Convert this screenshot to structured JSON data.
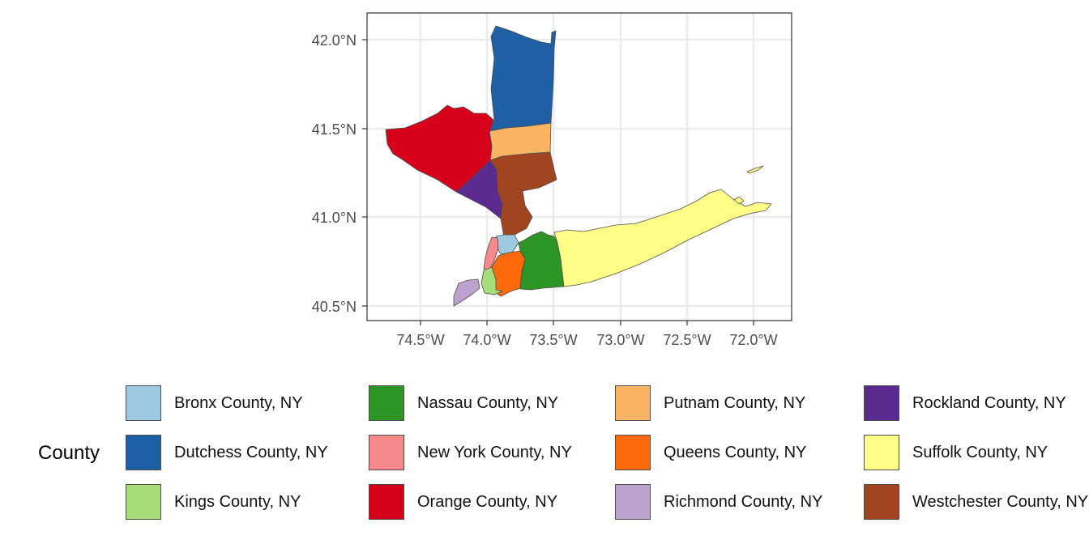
{
  "axes": {
    "y_ticks": [
      "42.0°N",
      "41.5°N",
      "41.0°N",
      "40.5°N"
    ],
    "x_ticks": [
      "74.5°W",
      "74.0°W",
      "73.5°W",
      "73.0°W",
      "72.5°W",
      "72.0°W"
    ]
  },
  "legend": {
    "title": "County",
    "items": [
      {
        "label": "Bronx County, NY",
        "color": "#9ecae1"
      },
      {
        "label": "Dutchess County, NY",
        "color": "#1f5fa6"
      },
      {
        "label": "Kings County, NY",
        "color": "#a6dc7a"
      },
      {
        "label": "Nassau County, NY",
        "color": "#2d9525"
      },
      {
        "label": "New York County, NY",
        "color": "#f7898a"
      },
      {
        "label": "Orange County, NY",
        "color": "#d7001a"
      },
      {
        "label": "Putnam County, NY",
        "color": "#fbb462"
      },
      {
        "label": "Queens County, NY",
        "color": "#ff6a0d"
      },
      {
        "label": "Richmond County, NY",
        "color": "#bba2cf"
      },
      {
        "label": "Rockland County, NY",
        "color": "#5a2a8e"
      },
      {
        "label": "Suffolk County, NY",
        "color": "#ffff88"
      },
      {
        "label": "Westchester County, NY",
        "color": "#a04520"
      }
    ]
  }
}
